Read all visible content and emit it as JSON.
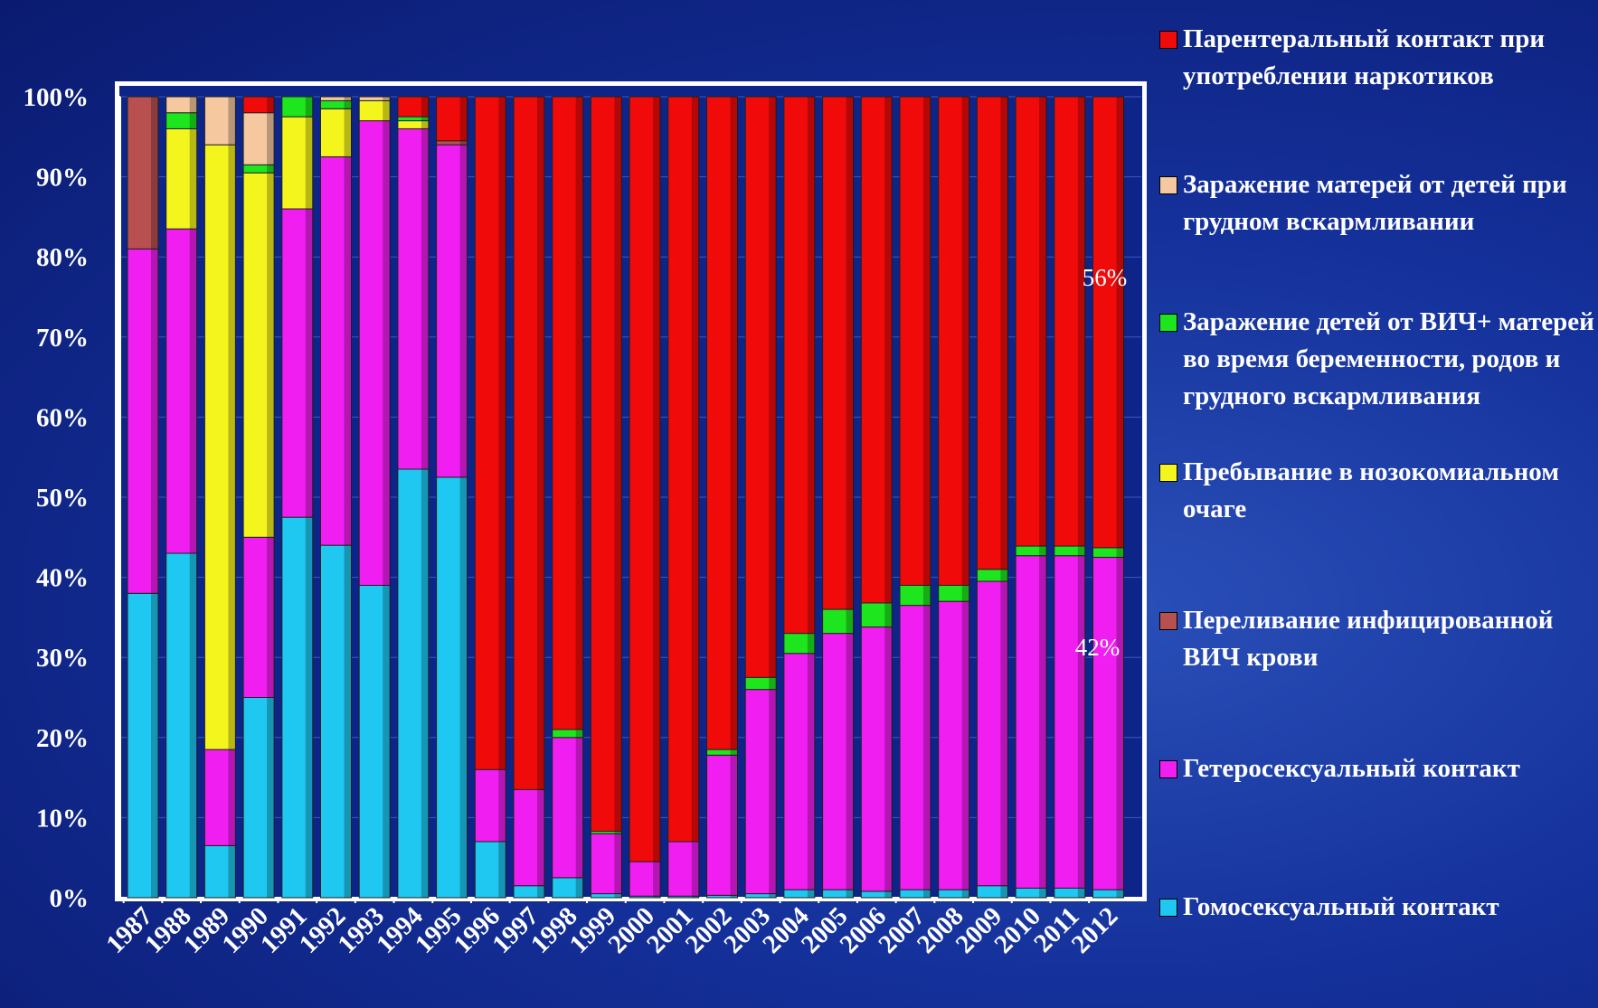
{
  "chart_data": {
    "type": "stacked_bar",
    "categories": [
      "1987",
      "1988",
      "1989",
      "1990",
      "1991",
      "1992",
      "1993",
      "1994",
      "1995",
      "1996",
      "1997",
      "1998",
      "1999",
      "2000",
      "2001",
      "2002",
      "2003",
      "2004",
      "2005",
      "2006",
      "2007",
      "2008",
      "2009",
      "2010",
      "2011",
      "2012"
    ],
    "series": [
      {
        "name": "Гомосексуальный контакт",
        "color": "#1ec8f0",
        "values": [
          38,
          43,
          6.5,
          25,
          47.5,
          44,
          39,
          53.5,
          52.5,
          7,
          1.5,
          2.5,
          0.5,
          0.2,
          0.2,
          0.3,
          0.5,
          1,
          1,
          0.8,
          1,
          1,
          1.5,
          1.2,
          1.2,
          1
        ]
      },
      {
        "name": "Гетеросексуальный контакт",
        "color": "#f01ef0",
        "values": [
          43,
          40.5,
          12,
          20,
          38.5,
          48.5,
          58,
          42.5,
          41.5,
          9,
          12,
          17.5,
          7.5,
          4.3,
          6.8,
          17.5,
          25.5,
          29.5,
          32,
          33,
          35.5,
          36,
          38,
          41.5,
          41.5,
          41.5
        ]
      },
      {
        "name": "Переливание инфицированной ВИЧ крови",
        "color": "#b85050",
        "values": [
          19,
          0,
          0,
          0,
          0,
          0,
          0,
          0,
          0.5,
          0,
          0,
          0,
          0,
          0,
          0,
          0,
          0,
          0,
          0,
          0,
          0,
          0,
          0,
          0,
          0,
          0
        ]
      },
      {
        "name": "Пребывание в нозокомиальном очаге",
        "color": "#f5f51e",
        "values": [
          0,
          12.5,
          75.5,
          45.5,
          11.5,
          6,
          2.5,
          1,
          0,
          0,
          0,
          0,
          0,
          0,
          0,
          0,
          0,
          0,
          0,
          0,
          0,
          0,
          0,
          0,
          0,
          0
        ]
      },
      {
        "name": "Заражение детей от ВИЧ+ матерей во время беременности, родов и грудного вскармливания",
        "color": "#1ee61e",
        "values": [
          0,
          2,
          0,
          1,
          2.5,
          1,
          0,
          0.5,
          0,
          0,
          0,
          1,
          0.3,
          0,
          0,
          0.7,
          1.5,
          2.5,
          3,
          3,
          2.5,
          2,
          1.5,
          1.2,
          1.2,
          1.2
        ]
      },
      {
        "name": "Заражение матерей от детей при грудном вскармливании",
        "color": "#f5c8a0",
        "values": [
          0,
          2,
          6,
          6.5,
          0,
          0.5,
          0.5,
          0,
          0,
          0,
          0,
          0,
          0,
          0,
          0,
          0,
          0,
          0,
          0,
          0,
          0,
          0,
          0,
          0,
          0,
          0
        ]
      },
      {
        "name": "Парентеральный контакт при употреблении наркотиков",
        "color": "#f00a0a",
        "values": [
          0,
          0,
          0,
          2,
          0,
          0,
          0,
          2.5,
          5.5,
          84,
          86.5,
          79,
          91.7,
          95.5,
          93,
          81.5,
          72.5,
          67,
          64,
          63.2,
          61,
          61,
          59,
          56.1,
          56.1,
          56.3
        ]
      }
    ],
    "ylim": [
      0,
      100
    ],
    "yticks": [
      {
        "value": 0,
        "label": "0%"
      },
      {
        "value": 10,
        "label": "10%"
      },
      {
        "value": 20,
        "label": "20%"
      },
      {
        "value": 30,
        "label": "30%"
      },
      {
        "value": 40,
        "label": "40%"
      },
      {
        "value": 50,
        "label": "50%"
      },
      {
        "value": 60,
        "label": "60%"
      },
      {
        "value": 70,
        "label": "70%"
      },
      {
        "value": 80,
        "label": "80%"
      },
      {
        "value": 90,
        "label": "90%"
      },
      {
        "value": 100,
        "label": "100%"
      }
    ],
    "annotations": [
      "56%",
      "42%"
    ],
    "grid": true
  }
}
